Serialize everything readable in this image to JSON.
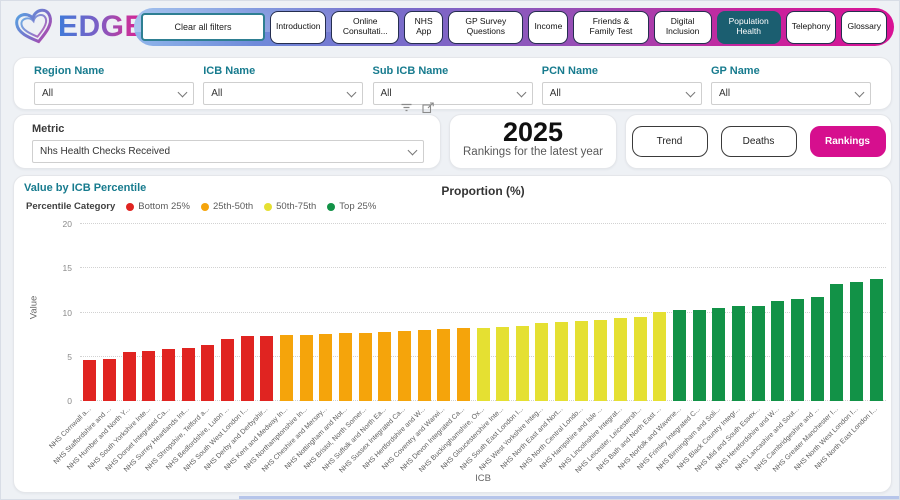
{
  "brand": {
    "logo_text": "EDGE"
  },
  "nav": {
    "clear_button": "Clear all filters",
    "tabs": [
      {
        "label": "Introduction",
        "active": false
      },
      {
        "label": "Online Consultati...",
        "active": false
      },
      {
        "label": "NHS App",
        "active": false
      },
      {
        "label": "GP Survey Questions",
        "active": false
      },
      {
        "label": "Income",
        "active": false
      },
      {
        "label": "Friends & Family Test",
        "active": false
      },
      {
        "label": "Digital Inclusion",
        "active": false
      },
      {
        "label": "Population Health",
        "active": true
      },
      {
        "label": "Telephony",
        "active": false
      },
      {
        "label": "Glossary",
        "active": false
      }
    ],
    "active_tab_color": "#1b5e70"
  },
  "filters": [
    {
      "label": "Region Name",
      "value": "All"
    },
    {
      "label": "ICB Name",
      "value": "All"
    },
    {
      "label": "Sub ICB Name",
      "value": "All"
    },
    {
      "label": "PCN Name",
      "value": "All"
    },
    {
      "label": "GP Name",
      "value": "All"
    }
  ],
  "metric": {
    "label": "Metric",
    "value": "Nhs Health Checks Received"
  },
  "year_panel": {
    "year": "2025",
    "caption": "Rankings for the latest year"
  },
  "view_buttons": [
    {
      "label": "Trend",
      "active": false
    },
    {
      "label": "Deaths",
      "active": false
    },
    {
      "label": "Rankings",
      "active": true
    }
  ],
  "accent_colors": {
    "rankings_pink": "#d60f8e",
    "heading_teal": "#177b8e"
  },
  "chart_data": {
    "type": "bar",
    "visual_title": "Value by ICB Percentile",
    "title": "Proportion (%)",
    "xlabel": "ICB",
    "ylabel": "Value",
    "ylim": [
      0,
      20
    ],
    "yticks": [
      0,
      5,
      10,
      15,
      20
    ],
    "grid": "dotted-horizontal",
    "legend_title": "Percentile Category",
    "legend_position": "top-left",
    "legend": [
      {
        "label": "Bottom 25%",
        "color": "#e02421"
      },
      {
        "label": "25th-50th",
        "color": "#f5a40b"
      },
      {
        "label": "50th-75th",
        "color": "#e5e032"
      },
      {
        "label": "Top 25%",
        "color": "#129247"
      }
    ],
    "categories": [
      "NHS Cornwall a...",
      "NHS Staffordshire and ...",
      "NHS Humber and North Y...",
      "NHS South Yorkshire Inte...",
      "NHS Dorset Integrated Ca...",
      "NHS Surrey Heartlands Int...",
      "NHS Shropshire, Telford a...",
      "NHS Bedfordshire, Luton ...",
      "NHS South West London I...",
      "NHS Derby and Derbyshir...",
      "NHS Kent and Medway In...",
      "NHS Northamptonshire In...",
      "NHS Cheshire and Mersey...",
      "NHS Nottingham and Not...",
      "NHS Bristol, North Somer...",
      "NHS Suffolk and North Ea...",
      "NHS Sussex Integrated Ca...",
      "NHS Hertfordshire and W...",
      "NHS Coventry and Warwi...",
      "NHS Devon Integrated Ca...",
      "NHS Buckinghamshire, Ox...",
      "NHS Gloucestershire Inte...",
      "NHS South East London I...",
      "NHS West Yorkshire Integ...",
      "NHS North East and Nort...",
      "NHS North Central Londo...",
      "NHS Hampshire and Isle ...",
      "NHS Lincolnshire Integrat...",
      "NHS Leicester, Leicestersh...",
      "NHS Bath and North East ...",
      "NHS Norfolk and Wavene...",
      "NHS Frimley Integrated C...",
      "NHS Birmingham and Soli...",
      "NHS Black Country Integr...",
      "NHS Mid and South Essex...",
      "NHS Herefordshire and W...",
      "NHS Lancashire and Sout...",
      "NHS Cambridgeshire and ...",
      "NHS Greater Manchester I...",
      "NHS North West London I...",
      "NHS North East London I..."
    ],
    "values": [
      4.6,
      4.7,
      5.5,
      5.6,
      5.9,
      6.0,
      6.3,
      7.0,
      7.3,
      7.4,
      7.5,
      7.5,
      7.6,
      7.7,
      7.7,
      7.8,
      7.9,
      8.0,
      8.1,
      8.2,
      8.3,
      8.4,
      8.5,
      8.8,
      8.9,
      9.0,
      9.2,
      9.4,
      9.5,
      10.1,
      10.3,
      10.3,
      10.5,
      10.7,
      10.7,
      11.3,
      11.5,
      11.7,
      13.2,
      13.4,
      13.8
    ],
    "percentile_group": [
      0,
      0,
      0,
      0,
      0,
      0,
      0,
      0,
      0,
      0,
      1,
      1,
      1,
      1,
      1,
      1,
      1,
      1,
      1,
      1,
      2,
      2,
      2,
      2,
      2,
      2,
      2,
      2,
      2,
      2,
      3,
      3,
      3,
      3,
      3,
      3,
      3,
      3,
      3,
      3,
      3
    ]
  }
}
